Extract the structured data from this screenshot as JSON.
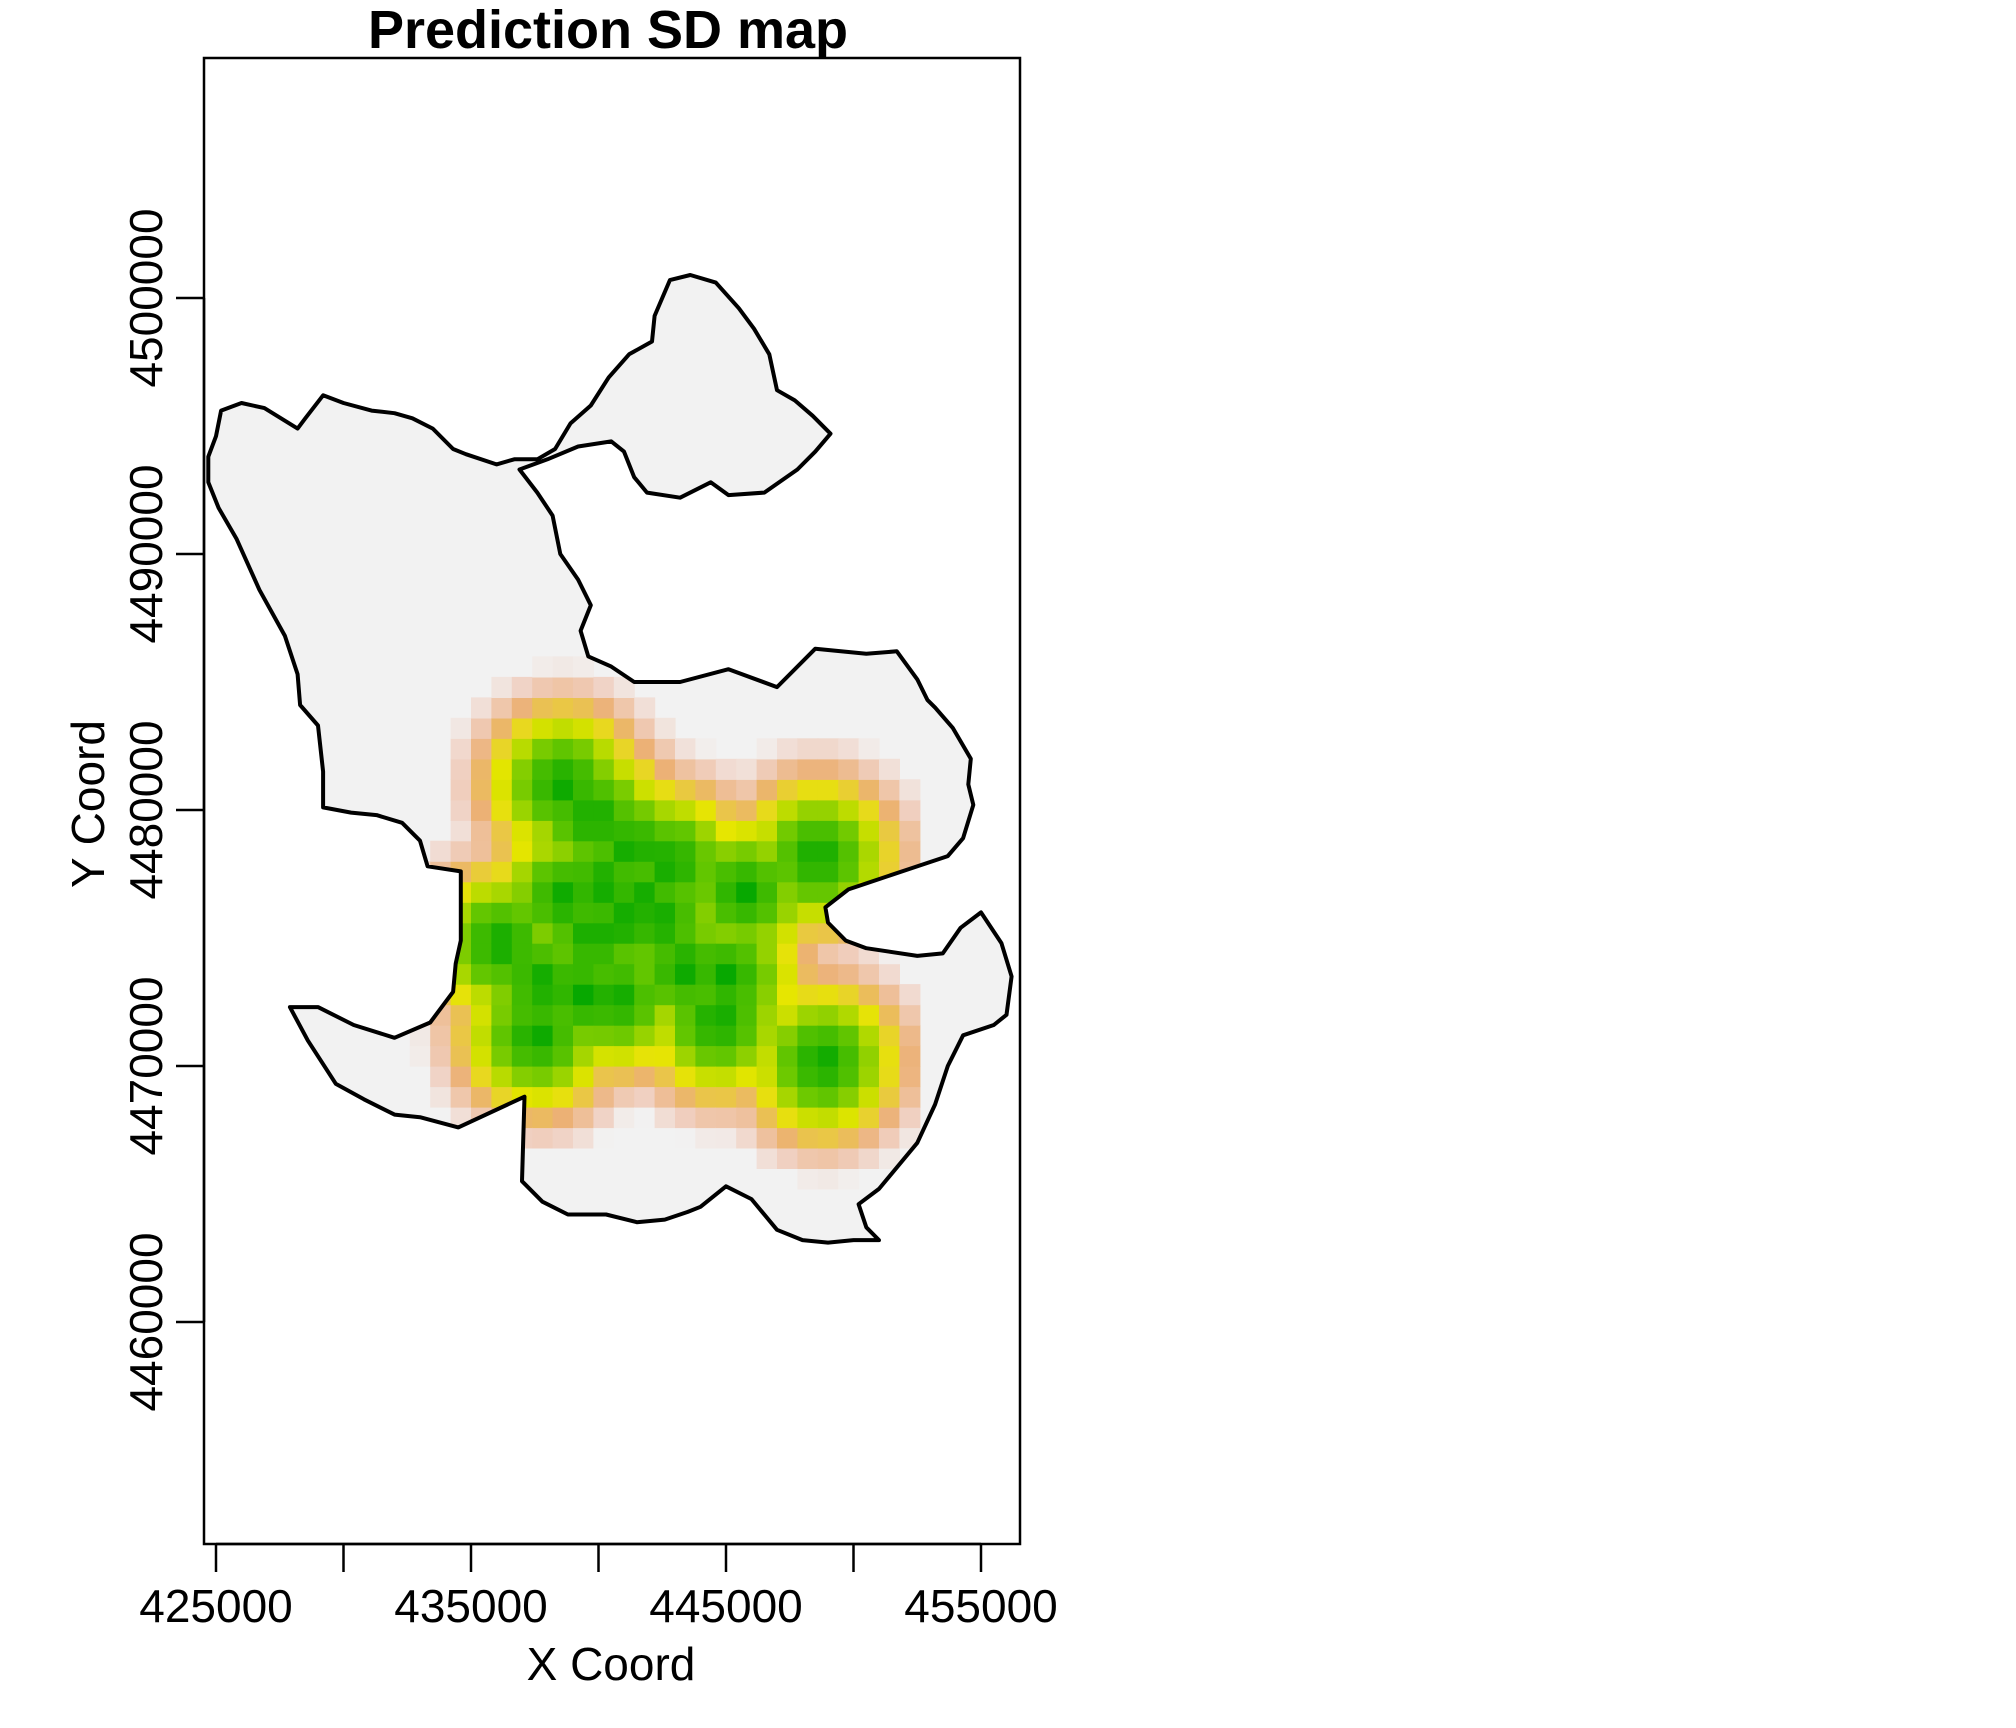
{
  "chart_data": {
    "type": "map",
    "title": "Prediction SD map",
    "xlabel": "X Coord",
    "ylabel": "Y Coord",
    "xlim": [
      424500,
      456500
    ],
    "ylim": [
      4451500,
      4509500
    ],
    "xticks": [
      425000,
      430000,
      435000,
      440000,
      445000,
      450000,
      455000
    ],
    "xtick_labels": [
      "425000",
      "",
      "435000",
      "",
      "445000",
      "",
      "455000"
    ],
    "yticks": [
      4460000,
      4470000,
      4480000,
      4490000,
      4500000
    ],
    "ytick_labels": [
      "4460000",
      "4470000",
      "4480000",
      "4490000",
      "4500000"
    ],
    "grid": false,
    "legend": "none",
    "colors": {
      "background_cell": "#f2f2f2",
      "low_sd": "#00a600",
      "mid_sd": "#e6e600",
      "high_sd": "#ecb176",
      "fade": "#f2f2f2",
      "boundary": "#000000"
    },
    "boundary": [
      [
        424700,
        4492800
      ],
      [
        425100,
        4491800
      ],
      [
        425800,
        4490600
      ],
      [
        426700,
        4488600
      ],
      [
        427700,
        4486800
      ],
      [
        428200,
        4485300
      ],
      [
        428300,
        4484100
      ],
      [
        429000,
        4483300
      ],
      [
        429200,
        4481500
      ],
      [
        429200,
        4480100
      ],
      [
        430300,
        4479900
      ],
      [
        431300,
        4479800
      ],
      [
        432300,
        4479500
      ],
      [
        433000,
        4478800
      ],
      [
        433300,
        4477800
      ],
      [
        434600,
        4477600
      ],
      [
        434600,
        4474900
      ],
      [
        434400,
        4474000
      ],
      [
        434300,
        4472900
      ],
      [
        433400,
        4471700
      ],
      [
        432000,
        4471100
      ],
      [
        430400,
        4471600
      ],
      [
        429000,
        4472300
      ],
      [
        427900,
        4472300
      ],
      [
        428600,
        4471000
      ],
      [
        429700,
        4469300
      ],
      [
        430800,
        4468700
      ],
      [
        432000,
        4468100
      ],
      [
        433000,
        4468000
      ],
      [
        434500,
        4467600
      ],
      [
        437100,
        4468800
      ],
      [
        437000,
        4465500
      ],
      [
        437800,
        4464700
      ],
      [
        438800,
        4464200
      ],
      [
        440300,
        4464200
      ],
      [
        441500,
        4463900
      ],
      [
        442600,
        4464000
      ],
      [
        443500,
        4464300
      ],
      [
        444000,
        4464500
      ],
      [
        445000,
        4465300
      ],
      [
        446000,
        4464800
      ],
      [
        447000,
        4463600
      ],
      [
        448000,
        4463200
      ],
      [
        449000,
        4463100
      ],
      [
        450000,
        4463200
      ],
      [
        451000,
        4463200
      ],
      [
        450500,
        4463700
      ],
      [
        450200,
        4464600
      ],
      [
        451000,
        4465200
      ],
      [
        452500,
        4467000
      ],
      [
        453200,
        4468500
      ],
      [
        453700,
        4470000
      ],
      [
        454300,
        4471200
      ],
      [
        455500,
        4471600
      ],
      [
        456000,
        4472000
      ],
      [
        456200,
        4473500
      ],
      [
        455800,
        4474800
      ],
      [
        455000,
        4476000
      ],
      [
        454200,
        4475400
      ],
      [
        453500,
        4474400
      ],
      [
        452500,
        4474300
      ],
      [
        450500,
        4474600
      ],
      [
        449700,
        4474900
      ],
      [
        449000,
        4475600
      ],
      [
        448900,
        4476200
      ],
      [
        449800,
        4476900
      ],
      [
        451000,
        4477300
      ],
      [
        452200,
        4477700
      ],
      [
        453700,
        4478200
      ],
      [
        454300,
        4478900
      ],
      [
        454700,
        4480200
      ],
      [
        454500,
        4481000
      ],
      [
        454600,
        4482000
      ],
      [
        453900,
        4483200
      ],
      [
        453200,
        4484000
      ],
      [
        452900,
        4484300
      ],
      [
        452500,
        4485100
      ],
      [
        451700,
        4486200
      ],
      [
        450500,
        4486100
      ],
      [
        448500,
        4486300
      ],
      [
        447000,
        4484800
      ],
      [
        445100,
        4485500
      ],
      [
        443200,
        4485000
      ],
      [
        441400,
        4485000
      ],
      [
        440500,
        4485600
      ],
      [
        439600,
        4486000
      ],
      [
        439300,
        4487000
      ],
      [
        439700,
        4488000
      ],
      [
        439200,
        4489000
      ],
      [
        438500,
        4490000
      ],
      [
        438200,
        4491500
      ],
      [
        437600,
        4492400
      ],
      [
        436900,
        4493300
      ],
      [
        438000,
        4493700
      ],
      [
        439200,
        4494200
      ],
      [
        440500,
        4494400
      ],
      [
        441000,
        4494000
      ],
      [
        441400,
        4493000
      ],
      [
        441900,
        4492400
      ],
      [
        443200,
        4492200
      ],
      [
        444400,
        4492800
      ],
      [
        445100,
        4492300
      ],
      [
        446500,
        4492400
      ],
      [
        447800,
        4493300
      ],
      [
        448500,
        4494000
      ],
      [
        449100,
        4494700
      ],
      [
        448400,
        4495400
      ],
      [
        447700,
        4496000
      ],
      [
        447000,
        4496400
      ],
      [
        446700,
        4497800
      ],
      [
        446100,
        4498800
      ],
      [
        445500,
        4499600
      ],
      [
        444600,
        4500600
      ],
      [
        443600,
        4500900
      ],
      [
        442800,
        4500700
      ],
      [
        442200,
        4499300
      ],
      [
        442100,
        4498300
      ],
      [
        441200,
        4497800
      ],
      [
        440400,
        4496900
      ],
      [
        439700,
        4495800
      ],
      [
        438900,
        4495100
      ],
      [
        438300,
        4494100
      ],
      [
        437600,
        4493700
      ],
      [
        436700,
        4493700
      ],
      [
        436000,
        4493500
      ],
      [
        434800,
        4493900
      ],
      [
        434300,
        4494100
      ],
      [
        433500,
        4494900
      ],
      [
        432700,
        4495300
      ],
      [
        432000,
        4495500
      ],
      [
        431100,
        4495600
      ],
      [
        430000,
        4495900
      ],
      [
        429200,
        4496200
      ],
      [
        428500,
        4495300
      ],
      [
        428200,
        4494900
      ],
      [
        426900,
        4495700
      ],
      [
        426000,
        4495900
      ],
      [
        425200,
        4495600
      ],
      [
        425000,
        4494600
      ],
      [
        424700,
        4493800
      ]
    ],
    "sd_hotspots": [
      [
        438600,
        4481000
      ],
      [
        439800,
        4479700
      ],
      [
        441300,
        4478500
      ],
      [
        440200,
        4477100
      ],
      [
        438700,
        4476600
      ],
      [
        441000,
        4475700
      ],
      [
        439800,
        4475100
      ],
      [
        442400,
        4475700
      ],
      [
        441700,
        4476500
      ],
      [
        436200,
        4474800
      ],
      [
        437800,
        4473300
      ],
      [
        439300,
        4472800
      ],
      [
        440700,
        4472700
      ],
      [
        437600,
        4471200
      ],
      [
        444700,
        4471800
      ],
      [
        445000,
        4473500
      ],
      [
        445700,
        4476800
      ],
      [
        443400,
        4473800
      ],
      [
        448600,
        4478200
      ],
      [
        448800,
        4470200
      ],
      [
        442800,
        4477900
      ]
    ]
  }
}
